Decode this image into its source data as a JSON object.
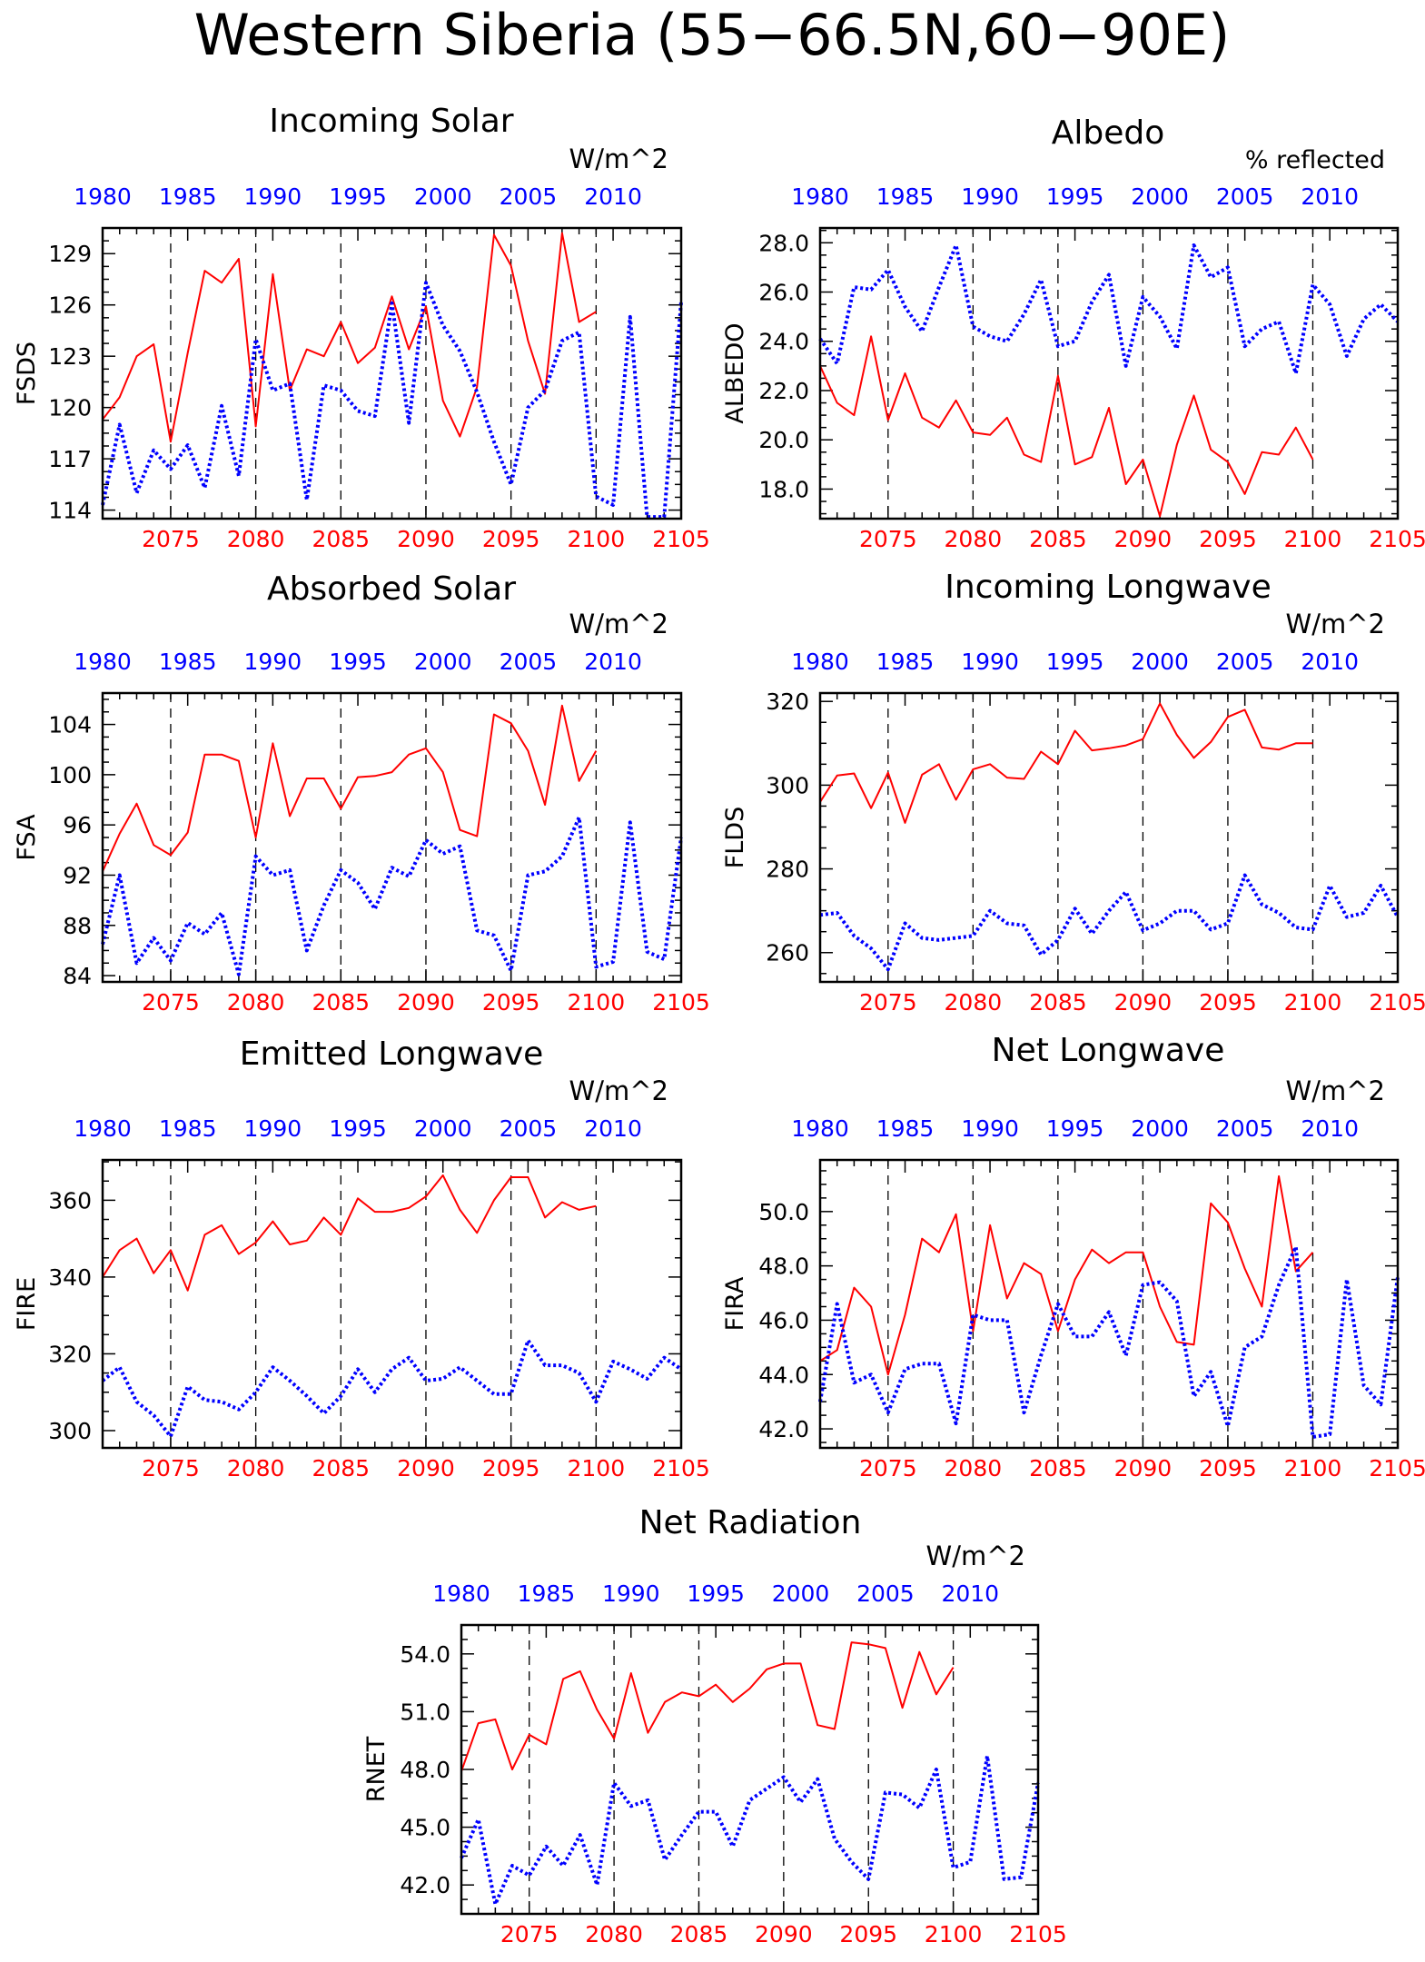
{
  "figure_title": "Western Siberia (55−66.5N,60−90E)",
  "colors": {
    "future": "#ff0000",
    "historical": "#0000ff",
    "axis": "#000000"
  },
  "top_axis_ticks": [
    "1980",
    "1985",
    "1990",
    "1995",
    "2000",
    "2005",
    "2010"
  ],
  "bottom_axis_ticks": [
    "2075",
    "2080",
    "2085",
    "2090",
    "2095",
    "2100",
    "2105"
  ],
  "chart_data": [
    {
      "type": "line",
      "title": "Incoming Solar",
      "units": "W/m^2",
      "ylabel": "FSDS",
      "ylim": [
        113.5,
        130.5
      ],
      "yticks": [
        114,
        117,
        120,
        123,
        126,
        129
      ],
      "ytick_labels": [
        "114",
        "117",
        "120",
        "123",
        "126",
        "129"
      ],
      "x_bottom_range": [
        2071,
        2105
      ],
      "x_top_range": [
        1980,
        2014
      ],
      "series": [
        {
          "axis": "bottom",
          "style": "solid",
          "start": 2071,
          "values": [
            119.3,
            120.6,
            123.0,
            123.7,
            118.0,
            123.2,
            128.0,
            127.3,
            128.7,
            118.9,
            127.8,
            121.0,
            123.4,
            123.0,
            125.0,
            122.6,
            123.5,
            126.5,
            123.4,
            125.9,
            120.4,
            118.3,
            121.2,
            130.1,
            128.3,
            123.9,
            120.8,
            130.2,
            125.0,
            125.6
          ]
        },
        {
          "axis": "top",
          "style": "dotted",
          "start": 1980,
          "values": [
            114.3,
            119.0,
            115.0,
            117.5,
            116.4,
            117.8,
            115.3,
            120.1,
            116.0,
            124.0,
            121.0,
            121.4,
            114.6,
            121.3,
            121.0,
            119.8,
            119.5,
            126.1,
            119.1,
            127.3,
            124.8,
            123.3,
            120.9,
            118.0,
            115.5,
            120.0,
            121.0,
            123.9,
            124.4,
            114.8,
            114.3,
            125.3,
            113.6,
            113.6,
            126.2
          ]
        }
      ]
    },
    {
      "type": "line",
      "title": "Albedo",
      "units": "% reflected",
      "ylabel": "ALBEDO",
      "ylim": [
        16.8,
        28.6
      ],
      "yticks": [
        18,
        20,
        22,
        24,
        26,
        28
      ],
      "ytick_labels": [
        "18.0",
        "20.0",
        "22.0",
        "24.0",
        "26.0",
        "28.0"
      ],
      "x_bottom_range": [
        2071,
        2105
      ],
      "x_top_range": [
        1980,
        2014
      ],
      "series": [
        {
          "axis": "bottom",
          "style": "solid",
          "start": 2071,
          "values": [
            23.0,
            21.5,
            21.0,
            24.2,
            20.8,
            22.7,
            20.9,
            20.5,
            21.6,
            20.3,
            20.2,
            20.9,
            19.4,
            19.1,
            22.6,
            19.0,
            19.3,
            21.3,
            18.2,
            19.2,
            16.9,
            19.8,
            21.8,
            19.6,
            19.1,
            17.8,
            19.5,
            19.4,
            20.5,
            19.2
          ]
        },
        {
          "axis": "top",
          "style": "dotted",
          "start": 1980,
          "values": [
            24.1,
            23.1,
            26.2,
            26.1,
            26.9,
            25.4,
            24.4,
            26.2,
            27.9,
            24.6,
            24.2,
            24.0,
            25.1,
            26.5,
            23.8,
            24.0,
            25.6,
            26.7,
            23.0,
            25.8,
            25.0,
            23.7,
            27.9,
            26.6,
            27.0,
            23.8,
            24.5,
            24.8,
            22.7,
            26.3,
            25.5,
            23.4,
            24.9,
            25.5,
            24.8
          ]
        }
      ]
    },
    {
      "type": "line",
      "title": "Absorbed Solar",
      "units": "W/m^2",
      "ylabel": "FSA",
      "ylim": [
        83.5,
        106.5
      ],
      "yticks": [
        84,
        88,
        92,
        96,
        100,
        104
      ],
      "ytick_labels": [
        "84",
        "88",
        "92",
        "96",
        "100",
        "104"
      ],
      "x_bottom_range": [
        2071,
        2105
      ],
      "x_top_range": [
        1980,
        2014
      ],
      "series": [
        {
          "axis": "bottom",
          "style": "solid",
          "start": 2071,
          "values": [
            92.3,
            95.3,
            97.7,
            94.4,
            93.6,
            95.4,
            101.6,
            101.6,
            101.1,
            95.0,
            102.5,
            96.7,
            99.7,
            99.7,
            97.3,
            99.8,
            99.9,
            100.2,
            101.6,
            102.1,
            100.2,
            95.6,
            95.1,
            104.8,
            104.1,
            101.9,
            97.6,
            105.5,
            99.5,
            101.9
          ]
        },
        {
          "axis": "top",
          "style": "dotted",
          "start": 1980,
          "values": [
            86.5,
            92.0,
            85.0,
            87.0,
            85.2,
            88.2,
            87.3,
            89.0,
            84.1,
            93.5,
            92.0,
            92.4,
            86.0,
            89.6,
            92.4,
            91.4,
            89.3,
            92.6,
            91.9,
            94.8,
            93.7,
            94.3,
            87.6,
            87.2,
            84.4,
            92.0,
            92.3,
            93.5,
            96.6,
            84.7,
            85.1,
            96.2,
            85.9,
            85.3,
            95.0
          ]
        }
      ]
    },
    {
      "type": "line",
      "title": "Incoming Longwave",
      "units": "W/m^2",
      "ylabel": "FLDS",
      "ylim": [
        253,
        322
      ],
      "yticks": [
        260,
        280,
        300,
        320
      ],
      "ytick_labels": [
        "260",
        "280",
        "300",
        "320"
      ],
      "x_bottom_range": [
        2071,
        2105
      ],
      "x_top_range": [
        1980,
        2014
      ],
      "series": [
        {
          "axis": "bottom",
          "style": "solid",
          "start": 2071,
          "values": [
            296.0,
            302.3,
            302.8,
            294.5,
            303.0,
            291.0,
            302.5,
            305.0,
            296.5,
            303.8,
            305.0,
            301.8,
            301.5,
            308.0,
            305.0,
            313.0,
            308.3,
            308.8,
            309.5,
            311.0,
            319.5,
            312.0,
            306.5,
            310.3,
            316.3,
            318.0,
            309.0,
            308.5,
            310.0,
            310.0
          ]
        },
        {
          "axis": "top",
          "style": "dotted",
          "start": 1980,
          "values": [
            269.0,
            269.5,
            264.0,
            261.0,
            256.0,
            267.0,
            263.5,
            263.0,
            263.5,
            264.0,
            270.0,
            267.0,
            266.5,
            259.5,
            263.0,
            270.5,
            264.5,
            270.0,
            274.5,
            265.3,
            267.0,
            270.0,
            270.0,
            265.5,
            267.0,
            278.5,
            271.5,
            269.5,
            266.0,
            265.5,
            276.0,
            268.5,
            269.5,
            276.0,
            268.5
          ]
        }
      ]
    },
    {
      "type": "line",
      "title": "Emitted Longwave",
      "units": "W/m^2",
      "ylabel": "FIRE",
      "ylim": [
        295.5,
        370.5
      ],
      "yticks": [
        300,
        320,
        340,
        360
      ],
      "ytick_labels": [
        "300",
        "320",
        "340",
        "360"
      ],
      "x_bottom_range": [
        2071,
        2105
      ],
      "x_top_range": [
        1980,
        2014
      ],
      "series": [
        {
          "axis": "bottom",
          "style": "solid",
          "start": 2071,
          "values": [
            340.0,
            347.0,
            350.0,
            341.0,
            347.0,
            336.5,
            351.0,
            353.5,
            346.0,
            349.0,
            354.5,
            348.5,
            349.5,
            355.5,
            351.0,
            360.5,
            357.0,
            357.0,
            358.0,
            361.0,
            366.5,
            357.5,
            351.5,
            360.0,
            366.0,
            366.0,
            355.5,
            359.5,
            357.5,
            358.5
          ]
        },
        {
          "axis": "top",
          "style": "dotted",
          "start": 1980,
          "values": [
            313.0,
            316.5,
            307.5,
            304.0,
            298.5,
            311.5,
            308.0,
            307.5,
            305.5,
            310.0,
            316.5,
            313.0,
            309.0,
            304.5,
            309.0,
            316.0,
            310.0,
            316.0,
            319.0,
            313.0,
            313.5,
            316.5,
            313.0,
            309.5,
            309.5,
            323.5,
            317.0,
            317.0,
            315.0,
            307.5,
            318.0,
            316.0,
            313.5,
            319.0,
            316.0
          ]
        }
      ]
    },
    {
      "type": "line",
      "title": "Net Longwave",
      "units": "W/m^2",
      "ylabel": "FIRA",
      "ylim": [
        41.3,
        51.9
      ],
      "yticks": [
        42,
        44,
        46,
        48,
        50
      ],
      "ytick_labels": [
        "42.0",
        "44.0",
        "46.0",
        "48.0",
        "50.0"
      ],
      "x_bottom_range": [
        2071,
        2105
      ],
      "x_top_range": [
        1980,
        2014
      ],
      "series": [
        {
          "axis": "bottom",
          "style": "solid",
          "start": 2071,
          "values": [
            44.5,
            44.9,
            47.2,
            46.5,
            44.0,
            46.2,
            49.0,
            48.5,
            49.9,
            45.6,
            49.5,
            46.8,
            48.1,
            47.7,
            45.6,
            47.5,
            48.6,
            48.1,
            48.5,
            48.5,
            46.5,
            45.2,
            45.1,
            50.3,
            49.6,
            47.9,
            46.5,
            51.3,
            47.8,
            48.5
          ]
        },
        {
          "axis": "top",
          "style": "dotted",
          "start": 1980,
          "values": [
            43.0,
            46.6,
            43.7,
            44.0,
            42.6,
            44.2,
            44.4,
            44.4,
            42.2,
            46.2,
            46.0,
            46.0,
            42.6,
            44.7,
            46.6,
            45.4,
            45.4,
            46.3,
            44.7,
            47.3,
            47.4,
            46.7,
            43.2,
            44.1,
            42.1,
            45.0,
            45.4,
            47.3,
            48.7,
            41.7,
            41.8,
            47.5,
            43.6,
            42.9,
            47.6
          ]
        }
      ]
    },
    {
      "type": "line",
      "title": "Net Radiation",
      "units": "W/m^2",
      "ylabel": "RNET",
      "ylim": [
        40.5,
        55.5
      ],
      "yticks": [
        42,
        45,
        48,
        51,
        54
      ],
      "ytick_labels": [
        "42.0",
        "45.0",
        "48.0",
        "51.0",
        "54.0"
      ],
      "x_bottom_range": [
        2071,
        2105
      ],
      "x_top_range": [
        1980,
        2014
      ],
      "series": [
        {
          "axis": "bottom",
          "style": "solid",
          "start": 2071,
          "values": [
            47.9,
            50.4,
            50.6,
            48.0,
            49.8,
            49.3,
            52.7,
            53.1,
            51.1,
            49.6,
            53.0,
            49.9,
            51.5,
            52.0,
            51.8,
            52.4,
            51.5,
            52.2,
            53.2,
            53.5,
            53.5,
            50.3,
            50.1,
            54.6,
            54.5,
            54.3,
            51.2,
            54.1,
            51.9,
            53.3
          ]
        },
        {
          "axis": "top",
          "style": "dotted",
          "start": 1980,
          "values": [
            43.4,
            45.4,
            41.0,
            43.0,
            42.5,
            44.0,
            43.0,
            44.6,
            42.0,
            47.3,
            46.1,
            46.4,
            43.3,
            44.6,
            45.8,
            45.8,
            44.0,
            46.4,
            47.0,
            47.6,
            46.3,
            47.5,
            44.4,
            43.2,
            42.3,
            46.8,
            46.7,
            46.0,
            48.0,
            42.9,
            43.2,
            48.7,
            42.3,
            42.4,
            47.3
          ]
        }
      ]
    }
  ]
}
